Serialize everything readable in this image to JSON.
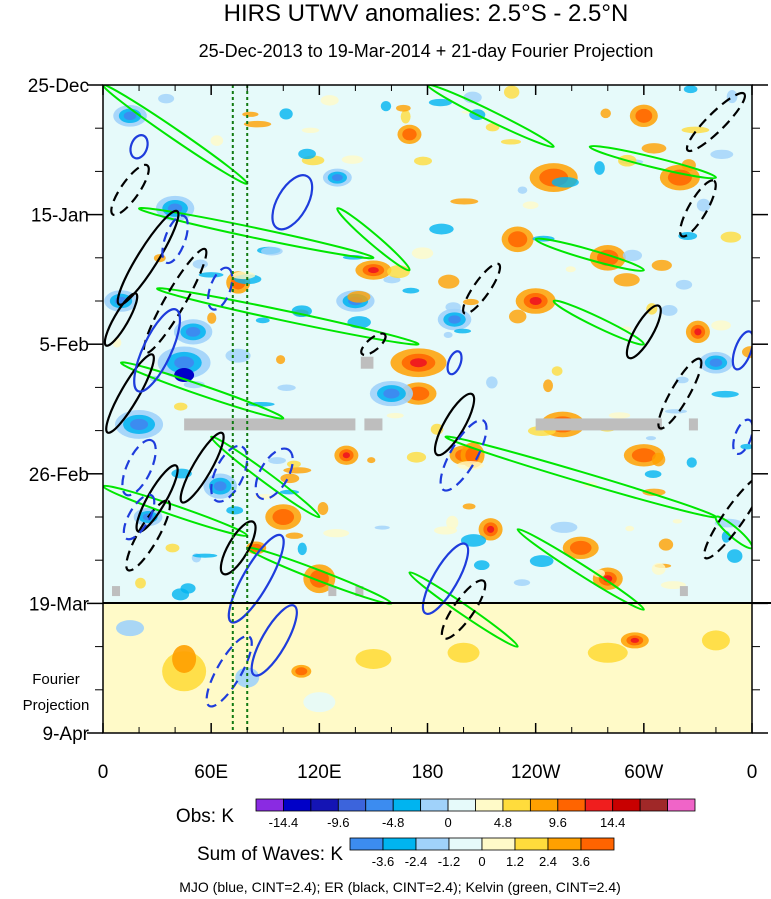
{
  "chart_data": {
    "type": "heatmap",
    "title": "HIRS UTWV anomalies: 2.5°S - 2.5°N",
    "subtitle": "25-Dec-2013 to 19-Mar-2014 + 21-day Fourier Projection",
    "x_ticks": [
      {
        "lon": 0,
        "label": "0"
      },
      {
        "lon": 60,
        "label": "60E"
      },
      {
        "lon": 120,
        "label": "120E"
      },
      {
        "lon": 180,
        "label": "180"
      },
      {
        "lon": 240,
        "label": "120W"
      },
      {
        "lon": 300,
        "label": "60W"
      },
      {
        "lon": 360,
        "label": "0"
      }
    ],
    "xlim": [
      0,
      360
    ],
    "time_range_days": [
      0,
      105
    ],
    "y_ticks": [
      {
        "day": 0,
        "label": "25-Dec"
      },
      {
        "day": 21,
        "label": "15-Jan"
      },
      {
        "day": 42,
        "label": "5-Feb"
      },
      {
        "day": 63,
        "label": "26-Feb"
      },
      {
        "day": 84,
        "label": "19-Mar"
      },
      {
        "day": 105,
        "label": "9-Apr"
      }
    ],
    "projection_start_day": 84,
    "projection_label_lines": [
      "Fourier",
      "Projection"
    ],
    "reference_lines_lon": [
      72,
      80
    ],
    "obs_colorbar": {
      "title": "Obs: K",
      "levels": [
        -14.4,
        -12,
        -9.6,
        -7.2,
        -4.8,
        -2.4,
        0,
        2.4,
        4.8,
        7.2,
        9.6,
        12,
        14.4
      ],
      "labels": [
        "-14.4",
        "-9.6",
        "-4.8",
        "0",
        "4.8",
        "9.6",
        "14.4"
      ],
      "label_indices": [
        1,
        3,
        5,
        7,
        9,
        11,
        13
      ],
      "colors": [
        "#8a2be2",
        "#0000c8",
        "#1414b4",
        "#3c64dc",
        "#3c8cf0",
        "#00b4f0",
        "#a0d2fa",
        "#e6fafa",
        "#fffac8",
        "#ffdc3c",
        "#ffa000",
        "#ff6400",
        "#f01e1e",
        "#c80000",
        "#a02828",
        "#f064c8"
      ]
    },
    "waves_colorbar": {
      "title": "Sum of Waves: K",
      "levels": [
        -3.6,
        -2.4,
        -1.2,
        0,
        1.2,
        2.4,
        3.6
      ],
      "labels": [
        "-3.6",
        "-2.4",
        "-1.2",
        "0",
        "1.2",
        "2.4",
        "3.6"
      ],
      "colors": [
        "#3c8cf0",
        "#00b4f0",
        "#a0d2fa",
        "#e6fafa",
        "#fffac8",
        "#ffdc3c",
        "#ffa000",
        "#ff6400"
      ]
    },
    "contour_series": [
      {
        "name": "MJO",
        "color": "blue",
        "cint": 2.4
      },
      {
        "name": "ER",
        "color": "black",
        "cint": 2.4
      },
      {
        "name": "Kelvin",
        "color": "green",
        "cint": 2.4
      }
    ],
    "footer": "MJO (blue, CINT=2.4); ER (black, CINT=2.4); Kelvin (green, CINT=2.4)"
  }
}
